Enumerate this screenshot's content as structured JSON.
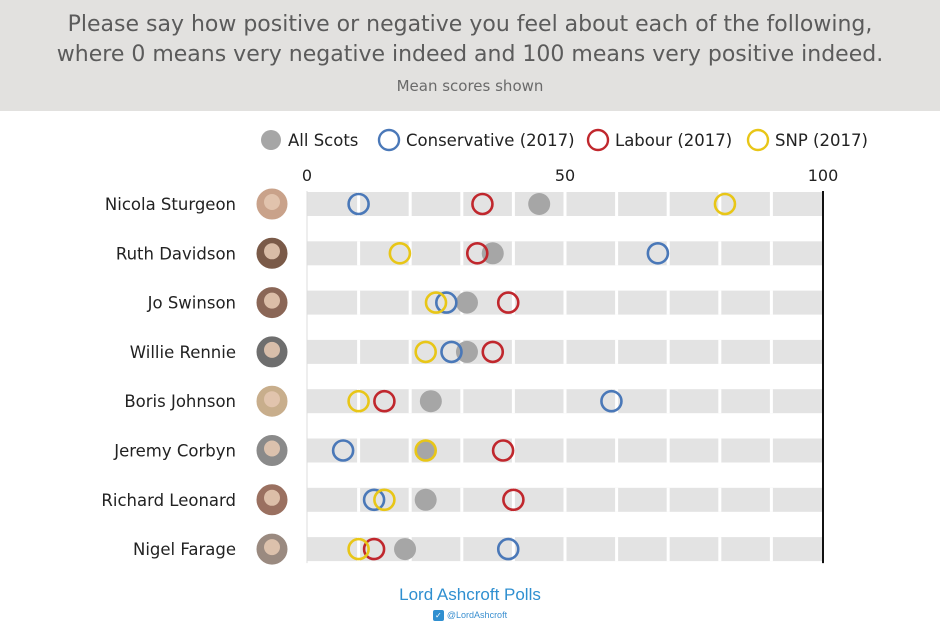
{
  "header": {
    "title_line1": "Please say how positive or negative you feel about each of the following,",
    "title_line2": "where 0 means very negative indeed and 100 means very positive indeed.",
    "subtitle": "Mean scores shown"
  },
  "footer": {
    "brand": "Lord Ashcroft Polls",
    "handle": "@LordAshcroft",
    "icon": "twitter-bird-icon"
  },
  "colors": {
    "all_scots": "#a6a6a6",
    "conservative": "#4a78b8",
    "labour": "#c0272d",
    "snp": "#e8c617",
    "track": "#e3e3e3"
  },
  "chart_data": {
    "type": "scatter",
    "title": "",
    "xlabel": "",
    "ylabel": "",
    "xlim": [
      0,
      100
    ],
    "xticks": [
      0,
      50,
      100
    ],
    "grid": true,
    "legend_placement": "top",
    "categories": [
      "Nicola Sturgeon",
      "Ruth Davidson",
      "Jo Swinson",
      "Willie Rennie",
      "Boris Johnson",
      "Jeremy Corbyn",
      "Richard Leonard",
      "Nigel Farage"
    ],
    "series": [
      {
        "name": "All Scots",
        "key": "all_scots",
        "filled": true,
        "values": [
          45,
          36,
          31,
          31,
          24,
          23,
          23,
          19
        ]
      },
      {
        "name": "Conservative (2017)",
        "key": "conservative",
        "filled": false,
        "values": [
          10,
          68,
          27,
          28,
          59,
          7,
          13,
          39
        ]
      },
      {
        "name": "Labour (2017)",
        "key": "labour",
        "filled": false,
        "values": [
          34,
          33,
          39,
          36,
          15,
          38,
          40,
          13
        ]
      },
      {
        "name": "SNP (2017)",
        "key": "snp",
        "filled": false,
        "values": [
          81,
          18,
          25,
          23,
          10,
          23,
          15,
          10
        ]
      }
    ]
  }
}
